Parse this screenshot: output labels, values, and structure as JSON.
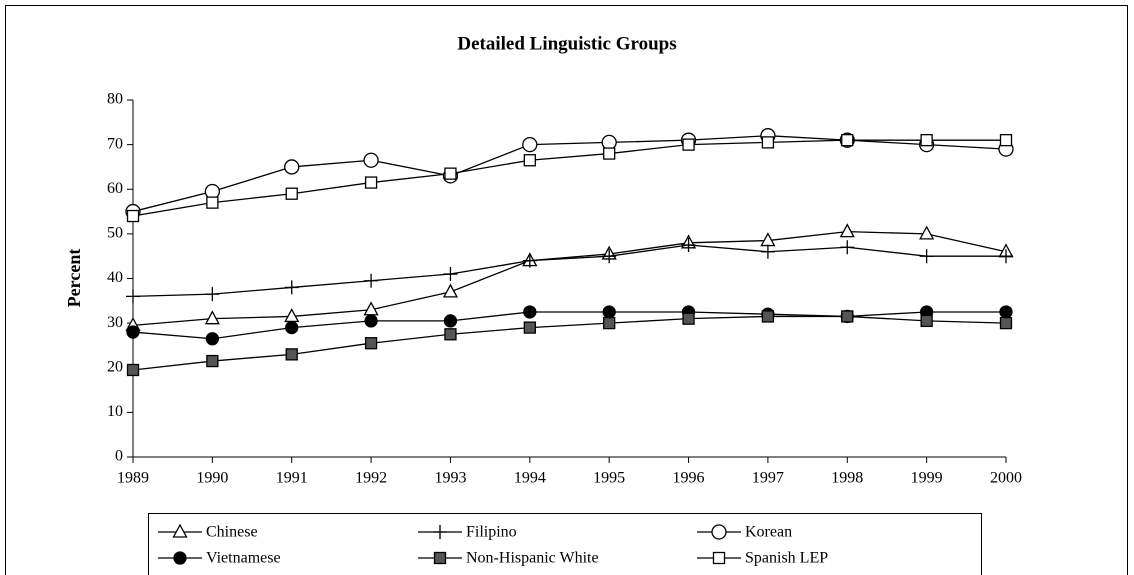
{
  "chart_data": {
    "type": "line",
    "title": "Detailed Linguistic Groups",
    "ylabel": "Percent",
    "categories": [
      "1989",
      "1990",
      "1991",
      "1992",
      "1993",
      "1994",
      "1995",
      "1996",
      "1997",
      "1998",
      "1999",
      "2000"
    ],
    "ylim": [
      0,
      80
    ],
    "yticks": [
      0,
      10,
      20,
      30,
      40,
      50,
      60,
      70,
      80
    ],
    "grid": false,
    "legend": "bottom",
    "series": [
      {
        "name": "Chinese",
        "color": "#000000",
        "marker": "triangle",
        "values": [
          29.5,
          31,
          31.5,
          33,
          37,
          44,
          45.5,
          48,
          48.5,
          50.5,
          50,
          46
        ]
      },
      {
        "name": "Filipino",
        "color": "#000000",
        "marker": "plus",
        "values": [
          36,
          36.5,
          38,
          39.5,
          41,
          44,
          45,
          47.5,
          46,
          47,
          45,
          45
        ]
      },
      {
        "name": "Korean",
        "color": "#000000",
        "marker": "circle-open",
        "values": [
          55,
          59.5,
          65,
          66.5,
          63,
          70,
          70.5,
          71,
          72,
          71,
          70,
          69
        ]
      },
      {
        "name": "Vietnamese",
        "color": "#000000",
        "marker": "circle-filled",
        "values": [
          28,
          26.5,
          29,
          30.5,
          30.5,
          32.5,
          32.5,
          32.5,
          32,
          31.5,
          32.5,
          32.5
        ]
      },
      {
        "name": "Non-Hispanic White",
        "color": "#000000",
        "marker": "square-filled",
        "values": [
          19.5,
          21.5,
          23,
          25.5,
          27.5,
          29,
          30,
          31,
          31.5,
          31.5,
          30.5,
          30
        ]
      },
      {
        "name": "Spanish LEP",
        "color": "#000000",
        "marker": "square-open",
        "values": [
          54,
          57,
          59,
          61.5,
          63.5,
          66.5,
          68,
          70,
          70.5,
          71,
          71,
          71
        ]
      }
    ]
  }
}
